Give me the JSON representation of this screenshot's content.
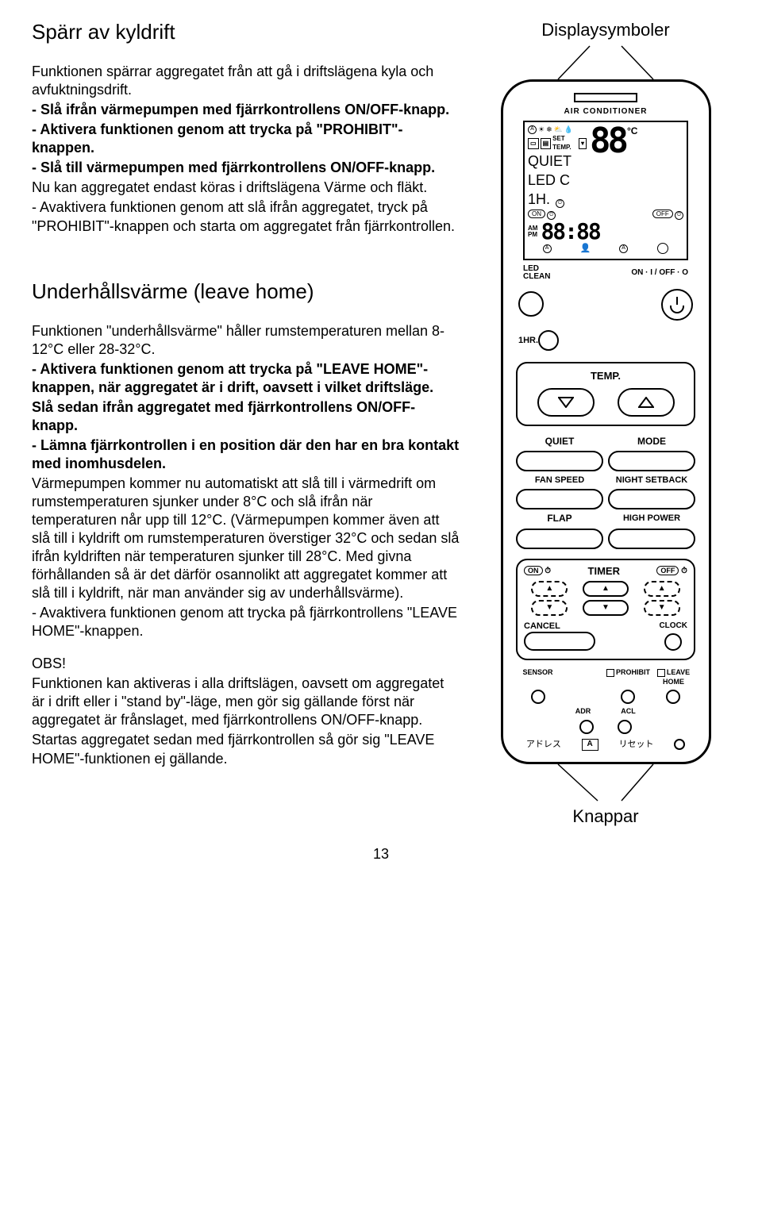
{
  "section1": {
    "title": "Spärr av kyldrift",
    "p1": "Funktionen spärrar aggregatet från att gå i driftslägena kyla och avfuktningsdrift.",
    "b1": "- Slå ifrån värmepumpen med fjärrkontrollens ON/OFF-knapp.",
    "b2": "- Aktivera funktionen genom att trycka på \"PROHIBIT\"-knappen.",
    "b3": "- Slå till värmepumpen med fjärrkontrollens ON/OFF-knapp.",
    "p2": "Nu kan aggregatet endast köras i driftslägena Värme och fläkt.",
    "p3": "- Avaktivera funktionen genom att slå ifrån aggregatet, tryck på \"PROHIBIT\"-knappen och starta om aggregatet från fjärrkontrollen."
  },
  "section2": {
    "title": "Underhållsvärme (leave home)",
    "p1": "Funktionen \"underhållsvärme\" håller rumstemperaturen mellan 8-12°C eller 28-32°C.",
    "b1a": "- Aktivera funktionen genom att trycka på \"LEAVE HOME\"-knappen, när aggregatet är i drift, oavsett i vilket driftsläge.",
    "b1b": "Slå sedan ifrån aggregatet med fjärrkontrollens ON/OFF-knapp.",
    "b2": "- Lämna fjärrkontrollen i en position där den har en bra kontakt med inomhusdelen.",
    "p2": "Värmepumpen kommer nu automatiskt att slå till i värmedrift om rumstemperaturen sjunker under 8°C och slå ifrån när temperaturen når upp till 12°C. (Värmepumpen kommer även att slå till i kyldrift om rumstemperaturen överstiger 32°C och sedan slå ifrån kyldriften när temperaturen sjunker till 28°C. Med givna förhållanden så är det därför osannolikt att aggregatet kommer att slå till i kyldrift, när man använder sig av underhållsvärme).",
    "p3": "- Avaktivera funktionen genom att trycka på fjärrkontrollens \"LEAVE HOME\"-knappen.",
    "obs_h": "OBS!",
    "obs_p": "Funktionen kan aktiveras i alla driftslägen, oavsett om aggregatet är i drift eller i \"stand by\"-läge, men gör sig gällande först när aggregatet är frånslaget, med fjärrkontrollens ON/OFF-knapp.",
    "obs_p2": "Startas aggregatet sedan med fjärrkontrollen så gör sig \"LEAVE HOME\"-funktionen ej gällande."
  },
  "right": {
    "top_label": "Displaysymboler",
    "bottom_label": "Knappar"
  },
  "remote": {
    "ac_label": "AIR CONDITIONER",
    "screen": {
      "icons_row": [
        "A",
        "☀",
        "❄",
        "⛅",
        "💧"
      ],
      "set_temp": "SET TEMP.",
      "quiet": "QUIET",
      "ledc": "LED C",
      "oneh": "1H.",
      "temp_digits": "88",
      "deg": "°C",
      "on_label": "ON",
      "off_label": "OFF",
      "am": "AM",
      "pm": "PM",
      "clock": "88:88",
      "a1": "A",
      "a2": "A"
    },
    "led_clean": "LED\nCLEAN",
    "onoff": "ON · I / OFF · O",
    "onehr": "1HR.",
    "temp_label": "TEMP.",
    "labels": {
      "quiet": "QUIET",
      "mode": "MODE",
      "fanspeed": "FAN SPEED",
      "nightsetback": "NIGHT SETBACK",
      "flap": "FLAP",
      "highpower": "HIGH POWER"
    },
    "timer": {
      "on": "ON",
      "title": "TIMER",
      "off": "OFF",
      "cancel": "CANCEL",
      "clock": "CLOCK"
    },
    "bottom": {
      "sensor": "SENSOR",
      "prohibit": "PROHIBIT",
      "leavehome": "LEAVE HOME",
      "adr": "ADR",
      "acl": "ACL",
      "jp1": "アドレス",
      "jp_a": "A",
      "jp2": "リセット"
    }
  },
  "pagenum": "13"
}
